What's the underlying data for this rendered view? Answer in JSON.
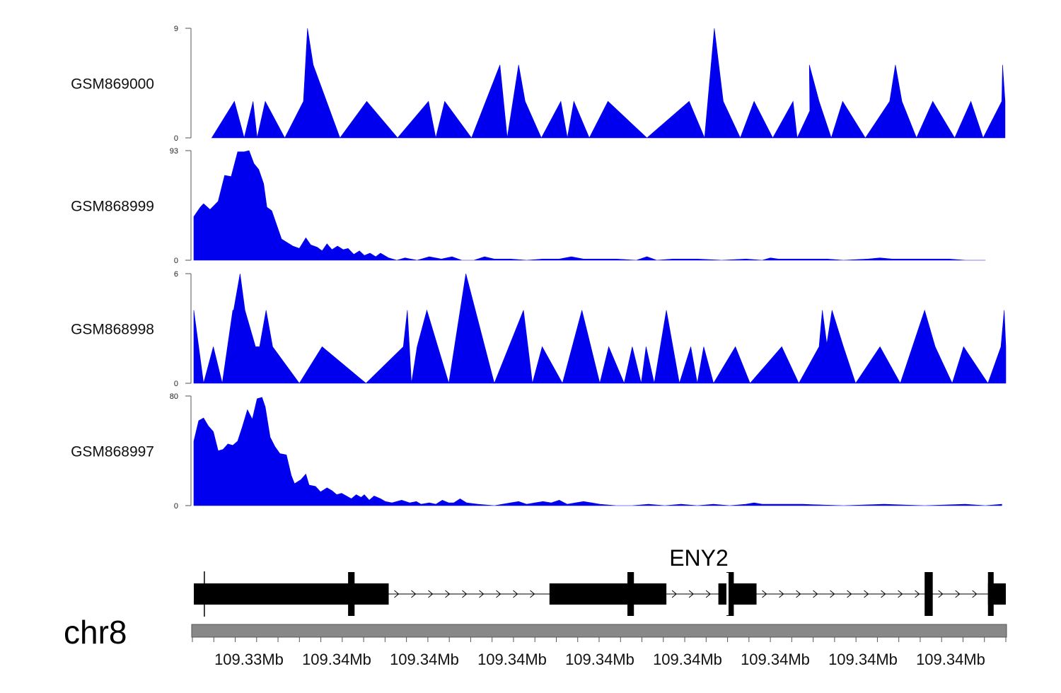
{
  "chart_data": {
    "type": "area",
    "title": "",
    "color": "#0000ee",
    "chromosome": "chr8",
    "x_tick_labels": [
      "109.33Mb",
      "109.34Mb",
      "109.34Mb",
      "109.34Mb",
      "109.34Mb",
      "109.34Mb",
      "109.34Mb",
      "109.34Mb",
      "109.34Mb"
    ],
    "x_range": [
      0,
      1
    ],
    "tracks": [
      {
        "name": "GSM869000",
        "ylim": [
          0,
          9
        ],
        "y_top_label": "9",
        "y_bottom_label": "0",
        "points": [
          [
            0.022,
            0
          ],
          [
            0.05,
            3
          ],
          [
            0.062,
            0
          ],
          [
            0.073,
            3
          ],
          [
            0.078,
            0
          ],
          [
            0.088,
            3
          ],
          [
            0.112,
            0
          ],
          [
            0.135,
            3
          ],
          [
            0.14,
            9
          ],
          [
            0.147,
            6
          ],
          [
            0.18,
            0
          ],
          [
            0.213,
            3
          ],
          [
            0.251,
            0
          ],
          [
            0.289,
            3
          ],
          [
            0.298,
            0
          ],
          [
            0.309,
            3
          ],
          [
            0.342,
            0
          ],
          [
            0.377,
            6
          ],
          [
            0.386,
            0
          ],
          [
            0.4,
            6
          ],
          [
            0.408,
            3
          ],
          [
            0.428,
            0
          ],
          [
            0.452,
            3
          ],
          [
            0.46,
            0
          ],
          [
            0.468,
            3
          ],
          [
            0.487,
            0
          ],
          [
            0.51,
            3
          ],
          [
            0.558,
            0
          ],
          [
            0.61,
            3
          ],
          [
            0.629,
            0
          ],
          [
            0.641,
            9
          ],
          [
            0.652,
            3
          ],
          [
            0.673,
            0
          ],
          [
            0.69,
            3
          ],
          [
            0.713,
            0
          ],
          [
            0.738,
            3
          ],
          [
            0.743,
            0
          ],
          [
            0.764,
            3
          ],
          [
            0.759,
            0
          ],
          [
            0.758,
            6
          ],
          [
            0.77,
            3
          ],
          [
            0.785,
            0
          ],
          [
            0.799,
            3
          ],
          [
            0.827,
            0
          ],
          [
            0.857,
            3
          ],
          [
            0.864,
            6
          ],
          [
            0.872,
            3
          ],
          [
            0.89,
            0
          ],
          [
            0.91,
            3
          ],
          [
            0.937,
            0
          ],
          [
            0.957,
            3
          ],
          [
            0.972,
            0
          ],
          [
            0.995,
            3
          ],
          [
            0.996,
            6
          ],
          [
            0.999,
            3
          ]
        ]
      },
      {
        "name": "GSM868999",
        "ylim": [
          0,
          93
        ],
        "y_top_label": "93",
        "y_bottom_label": "0",
        "points": [
          [
            0.0,
            37
          ],
          [
            0.008,
            45
          ],
          [
            0.012,
            48
          ],
          [
            0.02,
            43
          ],
          [
            0.03,
            50
          ],
          [
            0.038,
            72
          ],
          [
            0.046,
            71
          ],
          [
            0.054,
            92
          ],
          [
            0.062,
            92
          ],
          [
            0.068,
            93
          ],
          [
            0.074,
            82
          ],
          [
            0.08,
            77
          ],
          [
            0.086,
            65
          ],
          [
            0.09,
            45
          ],
          [
            0.096,
            42
          ],
          [
            0.102,
            30
          ],
          [
            0.108,
            18
          ],
          [
            0.115,
            15
          ],
          [
            0.122,
            12
          ],
          [
            0.13,
            10
          ],
          [
            0.138,
            19
          ],
          [
            0.144,
            13
          ],
          [
            0.152,
            11
          ],
          [
            0.158,
            8
          ],
          [
            0.164,
            14
          ],
          [
            0.17,
            9
          ],
          [
            0.177,
            12
          ],
          [
            0.184,
            9
          ],
          [
            0.19,
            10
          ],
          [
            0.197,
            5
          ],
          [
            0.204,
            8
          ],
          [
            0.21,
            4
          ],
          [
            0.217,
            6
          ],
          [
            0.224,
            3
          ],
          [
            0.23,
            6
          ],
          [
            0.24,
            2
          ],
          [
            0.25,
            0
          ],
          [
            0.26,
            2
          ],
          [
            0.275,
            0
          ],
          [
            0.29,
            3
          ],
          [
            0.305,
            1
          ],
          [
            0.318,
            3
          ],
          [
            0.33,
            0
          ],
          [
            0.345,
            0
          ],
          [
            0.358,
            3
          ],
          [
            0.37,
            1
          ],
          [
            0.39,
            1
          ],
          [
            0.41,
            0
          ],
          [
            0.43,
            1
          ],
          [
            0.45,
            1
          ],
          [
            0.465,
            3
          ],
          [
            0.48,
            1
          ],
          [
            0.5,
            1
          ],
          [
            0.52,
            1
          ],
          [
            0.545,
            0
          ],
          [
            0.558,
            3
          ],
          [
            0.57,
            0
          ],
          [
            0.59,
            1
          ],
          [
            0.62,
            1
          ],
          [
            0.65,
            0
          ],
          [
            0.68,
            1
          ],
          [
            0.7,
            0
          ],
          [
            0.71,
            2
          ],
          [
            0.72,
            1
          ],
          [
            0.75,
            1
          ],
          [
            0.78,
            1
          ],
          [
            0.8,
            0
          ],
          [
            0.83,
            1
          ],
          [
            0.845,
            2
          ],
          [
            0.86,
            1
          ],
          [
            0.9,
            1
          ],
          [
            0.93,
            1
          ],
          [
            0.95,
            0
          ],
          [
            0.975,
            0
          ]
        ]
      },
      {
        "name": "GSM868998",
        "ylim": [
          0,
          6
        ],
        "y_top_label": "6",
        "y_bottom_label": "0",
        "points": [
          [
            0.0,
            4
          ],
          [
            0.012,
            0
          ],
          [
            0.024,
            2
          ],
          [
            0.035,
            0
          ],
          [
            0.048,
            4
          ],
          [
            0.049,
            4
          ],
          [
            0.057,
            6
          ],
          [
            0.063,
            4
          ],
          [
            0.076,
            2
          ],
          [
            0.08,
            2
          ],
          [
            0.081,
            2
          ],
          [
            0.089,
            4
          ],
          [
            0.097,
            2
          ],
          [
            0.13,
            0
          ],
          [
            0.158,
            2
          ],
          [
            0.212,
            0
          ],
          [
            0.258,
            2
          ],
          [
            0.263,
            4
          ],
          [
            0.268,
            0
          ],
          [
            0.275,
            2
          ],
          [
            0.287,
            4
          ],
          [
            0.314,
            0
          ],
          [
            0.335,
            6
          ],
          [
            0.37,
            0
          ],
          [
            0.406,
            4
          ],
          [
            0.417,
            0
          ],
          [
            0.429,
            2
          ],
          [
            0.454,
            0
          ],
          [
            0.478,
            4
          ],
          [
            0.5,
            0
          ],
          [
            0.511,
            2
          ],
          [
            0.53,
            0
          ],
          [
            0.54,
            2
          ],
          [
            0.551,
            0
          ],
          [
            0.557,
            2
          ],
          [
            0.567,
            0
          ],
          [
            0.582,
            4
          ],
          [
            0.598,
            0
          ],
          [
            0.612,
            2
          ],
          [
            0.62,
            0
          ],
          [
            0.628,
            2
          ],
          [
            0.64,
            0
          ],
          [
            0.667,
            2
          ],
          [
            0.685,
            0
          ],
          [
            0.724,
            2
          ],
          [
            0.745,
            0
          ],
          [
            0.77,
            2
          ],
          [
            0.774,
            4
          ],
          [
            0.78,
            2
          ],
          [
            0.779,
            2
          ],
          [
            0.786,
            4
          ],
          [
            0.8,
            2
          ],
          [
            0.815,
            0
          ],
          [
            0.845,
            2
          ],
          [
            0.87,
            0
          ],
          [
            0.9,
            4
          ],
          [
            0.913,
            2
          ],
          [
            0.934,
            0
          ],
          [
            0.948,
            2
          ],
          [
            0.978,
            0
          ],
          [
            0.994,
            2
          ],
          [
            0.998,
            4
          ],
          [
            1.0,
            2
          ]
        ]
      },
      {
        "name": "GSM868997",
        "ylim": [
          0,
          80
        ],
        "y_top_label": "80",
        "y_bottom_label": "0",
        "points": [
          [
            0.0,
            47
          ],
          [
            0.006,
            62
          ],
          [
            0.012,
            64
          ],
          [
            0.018,
            58
          ],
          [
            0.024,
            54
          ],
          [
            0.03,
            40
          ],
          [
            0.036,
            41
          ],
          [
            0.042,
            45
          ],
          [
            0.048,
            44
          ],
          [
            0.054,
            47
          ],
          [
            0.06,
            58
          ],
          [
            0.066,
            70
          ],
          [
            0.072,
            63
          ],
          [
            0.078,
            78
          ],
          [
            0.084,
            79
          ],
          [
            0.088,
            72
          ],
          [
            0.094,
            50
          ],
          [
            0.1,
            43
          ],
          [
            0.106,
            38
          ],
          [
            0.114,
            37
          ],
          [
            0.12,
            22
          ],
          [
            0.124,
            16
          ],
          [
            0.132,
            19
          ],
          [
            0.138,
            23
          ],
          [
            0.142,
            15
          ],
          [
            0.15,
            14
          ],
          [
            0.156,
            10
          ],
          [
            0.164,
            13
          ],
          [
            0.17,
            11
          ],
          [
            0.176,
            8
          ],
          [
            0.182,
            9
          ],
          [
            0.188,
            7
          ],
          [
            0.194,
            5
          ],
          [
            0.2,
            8
          ],
          [
            0.206,
            6
          ],
          [
            0.21,
            8
          ],
          [
            0.216,
            4
          ],
          [
            0.222,
            7
          ],
          [
            0.23,
            5
          ],
          [
            0.236,
            3
          ],
          [
            0.244,
            2
          ],
          [
            0.256,
            4
          ],
          [
            0.266,
            2
          ],
          [
            0.274,
            3
          ],
          [
            0.28,
            1
          ],
          [
            0.29,
            2
          ],
          [
            0.298,
            1
          ],
          [
            0.306,
            4
          ],
          [
            0.314,
            2
          ],
          [
            0.32,
            2
          ],
          [
            0.328,
            5
          ],
          [
            0.336,
            2
          ],
          [
            0.35,
            1
          ],
          [
            0.37,
            0
          ],
          [
            0.39,
            2
          ],
          [
            0.4,
            3
          ],
          [
            0.41,
            1
          ],
          [
            0.42,
            2
          ],
          [
            0.43,
            3
          ],
          [
            0.44,
            2
          ],
          [
            0.45,
            4
          ],
          [
            0.46,
            1
          ],
          [
            0.47,
            2
          ],
          [
            0.48,
            3
          ],
          [
            0.49,
            2
          ],
          [
            0.5,
            1
          ],
          [
            0.52,
            0
          ],
          [
            0.54,
            0
          ],
          [
            0.56,
            1
          ],
          [
            0.58,
            0
          ],
          [
            0.6,
            1
          ],
          [
            0.62,
            0
          ],
          [
            0.64,
            1
          ],
          [
            0.66,
            0
          ],
          [
            0.68,
            1
          ],
          [
            0.69,
            2
          ],
          [
            0.7,
            1
          ],
          [
            0.75,
            1
          ],
          [
            0.8,
            0
          ],
          [
            0.85,
            1
          ],
          [
            0.9,
            0
          ],
          [
            0.95,
            1
          ],
          [
            0.975,
            0
          ],
          [
            0.995,
            1
          ]
        ]
      }
    ],
    "gene": {
      "name": "ENY2",
      "strand": "+",
      "blocks": [
        {
          "start": 0.0,
          "end": 0.24,
          "thick": true
        },
        {
          "start": 0.19,
          "end": 0.198,
          "tall": true
        },
        {
          "start": 0.438,
          "end": 0.582,
          "thick": true
        },
        {
          "start": 0.534,
          "end": 0.542,
          "tall": true
        },
        {
          "start": 0.646,
          "end": 0.693,
          "thick": true
        },
        {
          "start": 0.656,
          "end": 0.665,
          "tall": true
        },
        {
          "start": 0.9,
          "end": 0.91,
          "tall": true
        },
        {
          "start": 0.978,
          "end": 1.0,
          "thick": true
        },
        {
          "start": 0.978,
          "end": 0.985,
          "tall": true
        }
      ],
      "tss_tick": 0.013
    }
  }
}
